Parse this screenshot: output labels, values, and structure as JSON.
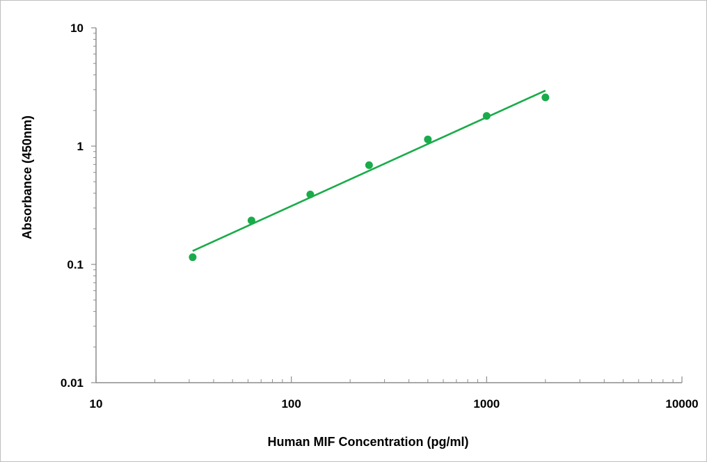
{
  "chart_data": {
    "type": "scatter",
    "title": "",
    "xlabel": "Human MIF Concentration (pg/ml)",
    "ylabel": "Absorbance (450nm)",
    "x_scale": "log",
    "y_scale": "log",
    "xlim": [
      10,
      10000
    ],
    "ylim": [
      0.01,
      10
    ],
    "x_ticks": [
      "10",
      "100",
      "1000",
      "10000"
    ],
    "y_ticks": [
      "0.01",
      "0.1",
      "1",
      "10"
    ],
    "grid": false,
    "legend": "none",
    "color": "#1aab4a",
    "series": [
      {
        "x": [
          31.25,
          62.5,
          125,
          250,
          500,
          1000,
          2000
        ],
        "y": [
          0.115,
          0.235,
          0.39,
          0.69,
          1.14,
          1.8,
          2.58
        ]
      }
    ],
    "trendline": {
      "type": "power",
      "x": [
        31.25,
        2000
      ],
      "y": [
        0.13,
        2.95
      ]
    }
  }
}
